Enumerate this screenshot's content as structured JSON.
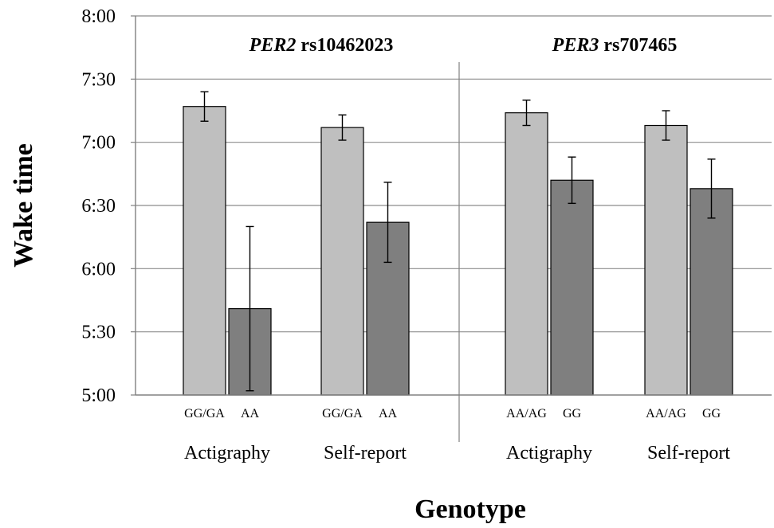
{
  "chart_data": {
    "type": "bar",
    "ylabel": "Wake time",
    "xlabel": "Genotype",
    "y_unit": "minutes after midnight",
    "ylim": [
      300,
      480
    ],
    "yticks": [
      {
        "value": 300,
        "label": "5:00"
      },
      {
        "value": 330,
        "label": "5:30"
      },
      {
        "value": 360,
        "label": "6:00"
      },
      {
        "value": 390,
        "label": "6:30"
      },
      {
        "value": 420,
        "label": "7:00"
      },
      {
        "value": 450,
        "label": "7:30"
      },
      {
        "value": 480,
        "label": "8:00"
      }
    ],
    "grid": true,
    "colors": {
      "light": "#bfbfbf",
      "dark": "#7f7f7f"
    },
    "panels": [
      {
        "title_italic": "PER2",
        "title_rest": " rs10462023",
        "groups": [
          {
            "method": "Actigraphy",
            "bars": [
              {
                "genotype": "GG/GA",
                "value": 437,
                "err_low": 430,
                "err_high": 444,
                "shade": "light"
              },
              {
                "genotype": "AA",
                "value": 341,
                "err_low": 302,
                "err_high": 380,
                "shade": "dark"
              }
            ]
          },
          {
            "method": "Self-report",
            "bars": [
              {
                "genotype": "GG/GA",
                "value": 427,
                "err_low": 421,
                "err_high": 433,
                "shade": "light"
              },
              {
                "genotype": "AA",
                "value": 382,
                "err_low": 363,
                "err_high": 401,
                "shade": "dark"
              }
            ]
          }
        ]
      },
      {
        "title_italic": "PER3",
        "title_rest": " rs707465",
        "groups": [
          {
            "method": "Actigraphy",
            "bars": [
              {
                "genotype": "AA/AG",
                "value": 434,
                "err_low": 428,
                "err_high": 440,
                "shade": "light"
              },
              {
                "genotype": "GG",
                "value": 402,
                "err_low": 391,
                "err_high": 413,
                "shade": "dark"
              }
            ]
          },
          {
            "method": "Self-report",
            "bars": [
              {
                "genotype": "AA/AG",
                "value": 428,
                "err_low": 421,
                "err_high": 435,
                "shade": "light"
              },
              {
                "genotype": "GG",
                "value": 398,
                "err_low": 384,
                "err_high": 412,
                "shade": "dark"
              }
            ]
          }
        ]
      }
    ]
  }
}
